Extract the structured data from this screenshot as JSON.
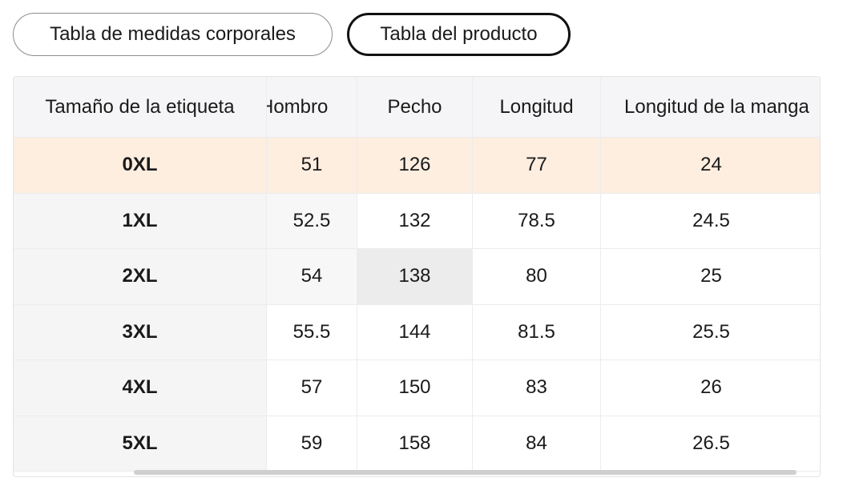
{
  "tabs": {
    "body_label": "Tabla de medidas corporales",
    "product_label": "Tabla del producto"
  },
  "table": {
    "headers": {
      "size": "Tamaño de la etiqueta",
      "shoulder": "Hombro",
      "chest": "Pecho",
      "length": "Longitud",
      "sleeve": "Longitud de la manga"
    },
    "rows": [
      {
        "size": "0XL",
        "shoulder": "51",
        "chest": "126",
        "length": "77",
        "sleeve": "24"
      },
      {
        "size": "1XL",
        "shoulder": "52.5",
        "chest": "132",
        "length": "78.5",
        "sleeve": "24.5"
      },
      {
        "size": "2XL",
        "shoulder": "54",
        "chest": "138",
        "length": "80",
        "sleeve": "25"
      },
      {
        "size": "3XL",
        "shoulder": "55.5",
        "chest": "144",
        "length": "81.5",
        "sleeve": "25.5"
      },
      {
        "size": "4XL",
        "shoulder": "57",
        "chest": "150",
        "length": "83",
        "sleeve": "26"
      },
      {
        "size": "5XL",
        "shoulder": "59",
        "chest": "158",
        "length": "84",
        "sleeve": "26.5"
      }
    ]
  },
  "colors": {
    "highlight_row": "#fdeee0",
    "header_bg": "#f5f5f7",
    "hover_cell": "#ececec"
  }
}
